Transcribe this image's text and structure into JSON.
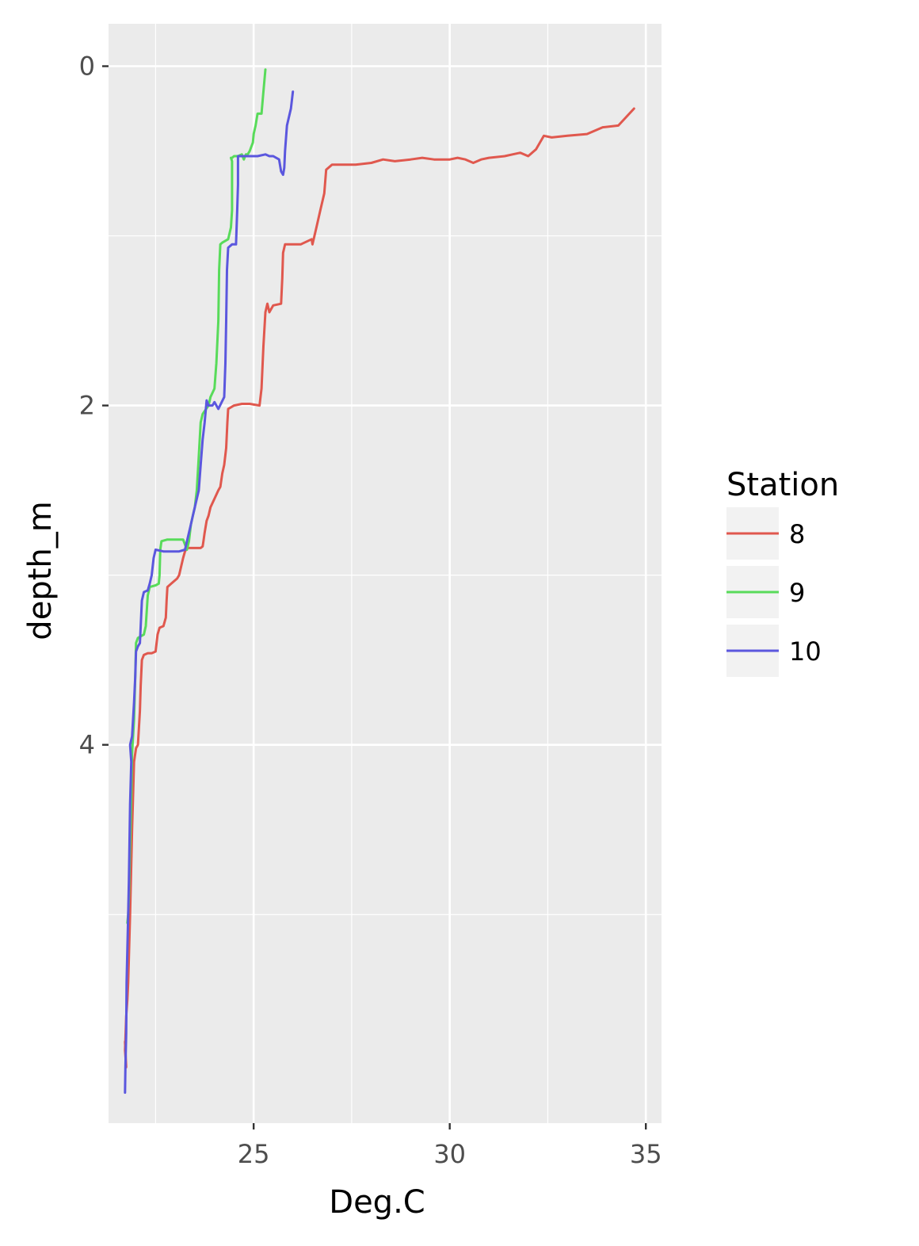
{
  "chart_data": {
    "type": "line",
    "title": "",
    "xlabel": "Deg.C",
    "ylabel": "depth_m",
    "x_axis": {
      "ticks": [
        25,
        30,
        35
      ],
      "tick_labels": [
        "25",
        "30",
        "35"
      ],
      "range": [
        21.3,
        35.4
      ]
    },
    "y_axis": {
      "ticks": [
        0,
        2,
        4
      ],
      "tick_labels": [
        "0",
        "2",
        "4"
      ],
      "range": [
        6.23,
        -0.25
      ],
      "reversed": true
    },
    "grid": true,
    "panel_background": "#EBEBEB",
    "legend": {
      "title": "Station",
      "position": "right"
    },
    "series": [
      {
        "name": "8",
        "color": "#E0584E",
        "points": [
          [
            34.7,
            0.25
          ],
          [
            34.3,
            0.35
          ],
          [
            33.9,
            0.36
          ],
          [
            33.5,
            0.4
          ],
          [
            33.0,
            0.41
          ],
          [
            32.6,
            0.42
          ],
          [
            32.4,
            0.41
          ],
          [
            32.2,
            0.49
          ],
          [
            32.0,
            0.53
          ],
          [
            31.8,
            0.51
          ],
          [
            31.6,
            0.52
          ],
          [
            31.4,
            0.53
          ],
          [
            31.0,
            0.54
          ],
          [
            30.8,
            0.55
          ],
          [
            30.6,
            0.57
          ],
          [
            30.4,
            0.55
          ],
          [
            30.2,
            0.54
          ],
          [
            30.0,
            0.55
          ],
          [
            29.6,
            0.55
          ],
          [
            29.3,
            0.54
          ],
          [
            29.0,
            0.55
          ],
          [
            28.6,
            0.56
          ],
          [
            28.3,
            0.55
          ],
          [
            28.0,
            0.57
          ],
          [
            27.6,
            0.58
          ],
          [
            27.3,
            0.58
          ],
          [
            27.0,
            0.58
          ],
          [
            26.85,
            0.61
          ],
          [
            26.8,
            0.75
          ],
          [
            26.7,
            0.85
          ],
          [
            26.6,
            0.95
          ],
          [
            26.55,
            1.0
          ],
          [
            26.5,
            1.05
          ],
          [
            26.48,
            1.02
          ],
          [
            26.2,
            1.05
          ],
          [
            26.0,
            1.05
          ],
          [
            25.8,
            1.05
          ],
          [
            25.75,
            1.1
          ],
          [
            25.73,
            1.25
          ],
          [
            25.7,
            1.4
          ],
          [
            25.5,
            1.41
          ],
          [
            25.45,
            1.43
          ],
          [
            25.4,
            1.45
          ],
          [
            25.35,
            1.4
          ],
          [
            25.3,
            1.45
          ],
          [
            25.25,
            1.65
          ],
          [
            25.2,
            1.9
          ],
          [
            25.15,
            2.0
          ],
          [
            24.9,
            1.99
          ],
          [
            24.7,
            1.99
          ],
          [
            24.5,
            2.0
          ],
          [
            24.35,
            2.02
          ],
          [
            24.33,
            2.1
          ],
          [
            24.3,
            2.25
          ],
          [
            24.25,
            2.35
          ],
          [
            24.2,
            2.4
          ],
          [
            24.15,
            2.48
          ],
          [
            24.1,
            2.5
          ],
          [
            24.0,
            2.55
          ],
          [
            23.9,
            2.6
          ],
          [
            23.85,
            2.65
          ],
          [
            23.8,
            2.68
          ],
          [
            23.75,
            2.75
          ],
          [
            23.72,
            2.8
          ],
          [
            23.7,
            2.83
          ],
          [
            23.65,
            2.84
          ],
          [
            23.45,
            2.84
          ],
          [
            23.3,
            2.84
          ],
          [
            23.25,
            2.86
          ],
          [
            23.2,
            2.9
          ],
          [
            23.15,
            2.95
          ],
          [
            23.1,
            3.0
          ],
          [
            23.05,
            3.02
          ],
          [
            22.9,
            3.05
          ],
          [
            22.8,
            3.07
          ],
          [
            22.78,
            3.15
          ],
          [
            22.76,
            3.25
          ],
          [
            22.7,
            3.3
          ],
          [
            22.6,
            3.31
          ],
          [
            22.55,
            3.35
          ],
          [
            22.5,
            3.45
          ],
          [
            22.4,
            3.46
          ],
          [
            22.3,
            3.46
          ],
          [
            22.2,
            3.47
          ],
          [
            22.15,
            3.5
          ],
          [
            22.12,
            3.65
          ],
          [
            22.1,
            3.8
          ],
          [
            22.05,
            4.0
          ],
          [
            22.0,
            4.02
          ],
          [
            21.95,
            4.1
          ],
          [
            21.9,
            4.5
          ],
          [
            21.85,
            5.0
          ],
          [
            21.8,
            5.4
          ],
          [
            21.78,
            5.5
          ],
          [
            21.75,
            5.6
          ],
          [
            21.72,
            5.8
          ],
          [
            21.75,
            5.9
          ],
          [
            21.72,
            5.75
          ]
        ]
      },
      {
        "name": "9",
        "color": "#58DB5A",
        "points": [
          [
            25.3,
            0.02
          ],
          [
            25.25,
            0.15
          ],
          [
            25.2,
            0.28
          ],
          [
            25.1,
            0.28
          ],
          [
            25.05,
            0.35
          ],
          [
            25.0,
            0.4
          ],
          [
            24.98,
            0.45
          ],
          [
            24.9,
            0.5
          ],
          [
            24.85,
            0.52
          ],
          [
            24.8,
            0.52
          ],
          [
            24.75,
            0.55
          ],
          [
            24.7,
            0.52
          ],
          [
            24.6,
            0.53
          ],
          [
            24.5,
            0.53
          ],
          [
            24.45,
            0.54
          ],
          [
            24.42,
            0.54
          ],
          [
            24.45,
            0.56
          ],
          [
            24.45,
            0.7
          ],
          [
            24.45,
            0.85
          ],
          [
            24.42,
            0.95
          ],
          [
            24.35,
            1.02
          ],
          [
            24.2,
            1.04
          ],
          [
            24.15,
            1.05
          ],
          [
            24.12,
            1.2
          ],
          [
            24.1,
            1.5
          ],
          [
            24.05,
            1.75
          ],
          [
            24.0,
            1.9
          ],
          [
            23.9,
            1.95
          ],
          [
            23.85,
            2.0
          ],
          [
            23.7,
            2.05
          ],
          [
            23.65,
            2.1
          ],
          [
            23.6,
            2.3
          ],
          [
            23.55,
            2.5
          ],
          [
            23.5,
            2.6
          ],
          [
            23.45,
            2.65
          ],
          [
            23.4,
            2.7
          ],
          [
            23.35,
            2.8
          ],
          [
            23.3,
            2.85
          ],
          [
            23.2,
            2.79
          ],
          [
            23.0,
            2.79
          ],
          [
            22.8,
            2.79
          ],
          [
            22.65,
            2.8
          ],
          [
            22.62,
            2.85
          ],
          [
            22.6,
            3.0
          ],
          [
            22.58,
            3.05
          ],
          [
            22.5,
            3.06
          ],
          [
            22.35,
            3.07
          ],
          [
            22.3,
            3.12
          ],
          [
            22.25,
            3.3
          ],
          [
            22.2,
            3.35
          ],
          [
            22.05,
            3.37
          ],
          [
            22.0,
            3.4
          ],
          [
            21.98,
            3.6
          ],
          [
            21.95,
            3.85
          ],
          [
            21.9,
            4.05
          ],
          [
            21.88,
            4.3
          ],
          [
            21.85,
            4.6
          ],
          [
            21.82,
            4.9
          ],
          [
            21.8,
            5.0
          ],
          [
            21.78,
            5.05
          ]
        ]
      },
      {
        "name": "10",
        "color": "#5B57DE",
        "points": [
          [
            26.0,
            0.15
          ],
          [
            25.95,
            0.25
          ],
          [
            25.9,
            0.3
          ],
          [
            25.85,
            0.35
          ],
          [
            25.8,
            0.5
          ],
          [
            25.78,
            0.6
          ],
          [
            25.75,
            0.64
          ],
          [
            25.7,
            0.62
          ],
          [
            25.65,
            0.55
          ],
          [
            25.5,
            0.53
          ],
          [
            25.4,
            0.53
          ],
          [
            25.3,
            0.52
          ],
          [
            25.1,
            0.53
          ],
          [
            24.9,
            0.53
          ],
          [
            24.7,
            0.53
          ],
          [
            24.6,
            0.53
          ],
          [
            24.6,
            0.55
          ],
          [
            24.6,
            0.7
          ],
          [
            24.58,
            0.85
          ],
          [
            24.55,
            1.05
          ],
          [
            24.45,
            1.05
          ],
          [
            24.35,
            1.07
          ],
          [
            24.32,
            1.2
          ],
          [
            24.3,
            1.5
          ],
          [
            24.28,
            1.75
          ],
          [
            24.25,
            1.95
          ],
          [
            24.1,
            2.02
          ],
          [
            24.0,
            1.98
          ],
          [
            23.95,
            2.0
          ],
          [
            23.85,
            2.0
          ],
          [
            23.8,
            1.97
          ],
          [
            23.75,
            2.1
          ],
          [
            23.7,
            2.2
          ],
          [
            23.65,
            2.35
          ],
          [
            23.6,
            2.5
          ],
          [
            23.55,
            2.55
          ],
          [
            23.5,
            2.6
          ],
          [
            23.45,
            2.65
          ],
          [
            23.4,
            2.7
          ],
          [
            23.35,
            2.75
          ],
          [
            23.3,
            2.8
          ],
          [
            23.25,
            2.85
          ],
          [
            23.1,
            2.86
          ],
          [
            22.9,
            2.86
          ],
          [
            22.7,
            2.86
          ],
          [
            22.5,
            2.85
          ],
          [
            22.45,
            2.9
          ],
          [
            22.4,
            3.0
          ],
          [
            22.35,
            3.05
          ],
          [
            22.3,
            3.09
          ],
          [
            22.2,
            3.1
          ],
          [
            22.15,
            3.15
          ],
          [
            22.12,
            3.3
          ],
          [
            22.1,
            3.4
          ],
          [
            22.05,
            3.42
          ],
          [
            22.0,
            3.45
          ],
          [
            21.98,
            3.6
          ],
          [
            21.95,
            3.75
          ],
          [
            21.9,
            3.95
          ],
          [
            21.85,
            4.0
          ],
          [
            21.88,
            4.1
          ],
          [
            21.85,
            4.35
          ],
          [
            21.82,
            4.8
          ],
          [
            21.8,
            5.0
          ],
          [
            21.78,
            5.2
          ],
          [
            21.76,
            5.4
          ],
          [
            21.75,
            5.7
          ],
          [
            21.73,
            5.9
          ],
          [
            21.72,
            6.05
          ]
        ]
      }
    ]
  }
}
